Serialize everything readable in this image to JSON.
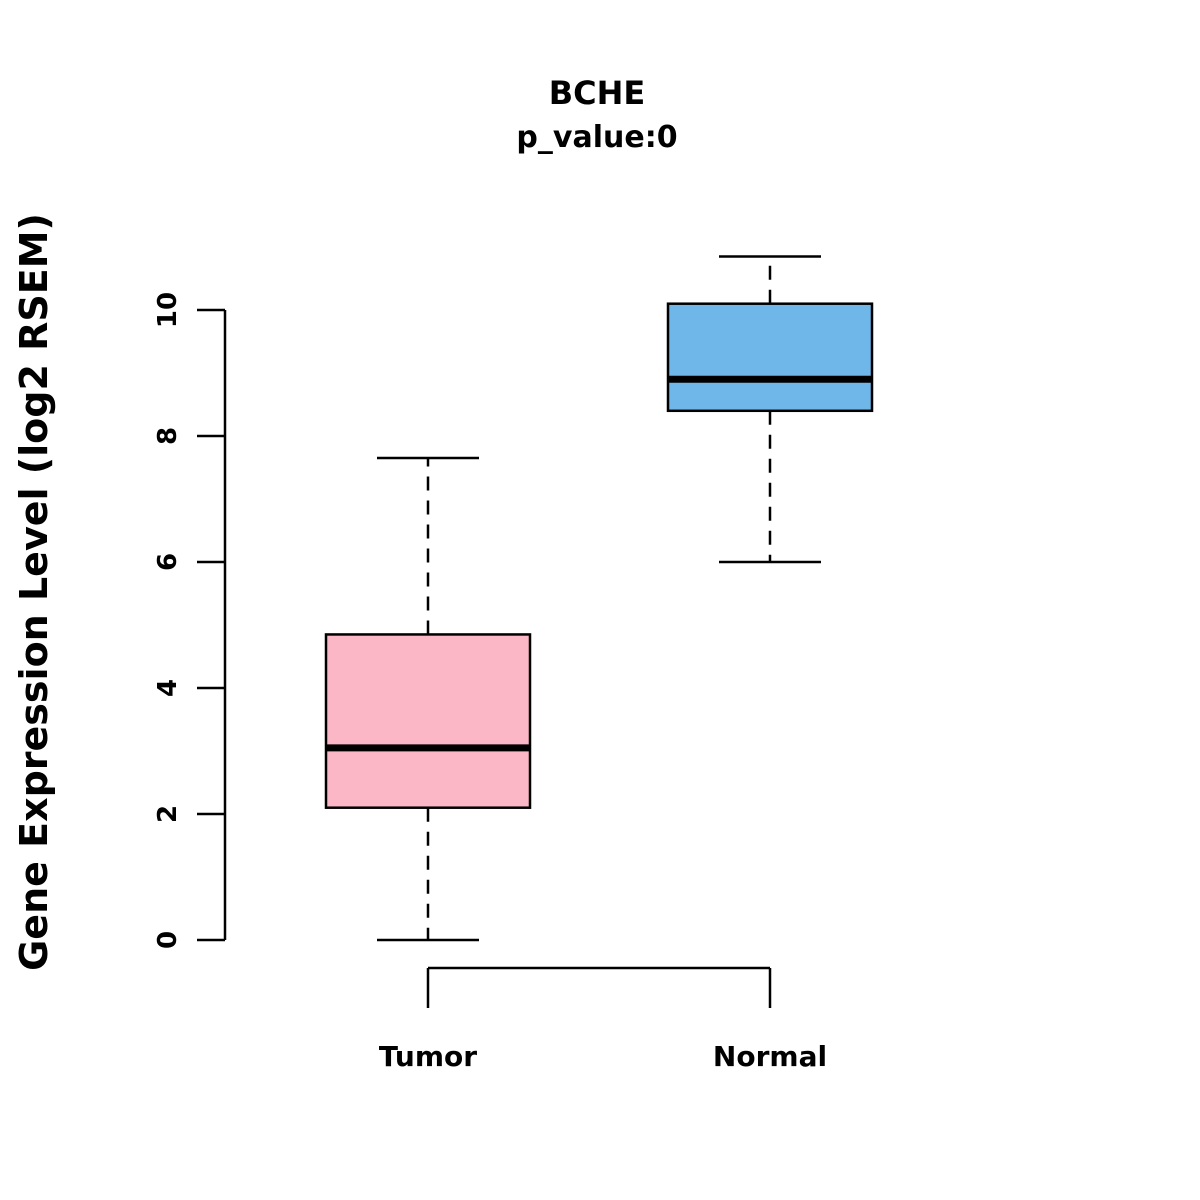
{
  "title": "BCHE",
  "subtitle": "p_value:0",
  "ylabel": "Gene Expression Level (log2 RSEM)",
  "colors": {
    "tumor_fill": "#FBB7C5",
    "normal_fill": "#6FB7E9",
    "line": "#000000",
    "background": "#FFFFFF"
  },
  "chart_data": {
    "type": "box",
    "title": "BCHE",
    "subtitle": "p_value:0",
    "xlabel": "",
    "ylabel": "Gene Expression Level (log2 RSEM)",
    "ylim": [
      0,
      10
    ],
    "yticks": [
      0,
      2,
      4,
      6,
      8,
      10
    ],
    "grid": false,
    "legend": "none",
    "categories": [
      "Tumor",
      "Normal"
    ],
    "series": [
      {
        "name": "Tumor",
        "color": "#FBB7C5",
        "whisker_low": 0.0,
        "q1": 2.1,
        "median": 3.05,
        "q3": 4.85,
        "whisker_high": 7.65
      },
      {
        "name": "Normal",
        "color": "#6FB7E9",
        "whisker_low": 6.0,
        "q1": 8.4,
        "median": 8.9,
        "q3": 10.1,
        "whisker_high": 10.85
      }
    ]
  }
}
